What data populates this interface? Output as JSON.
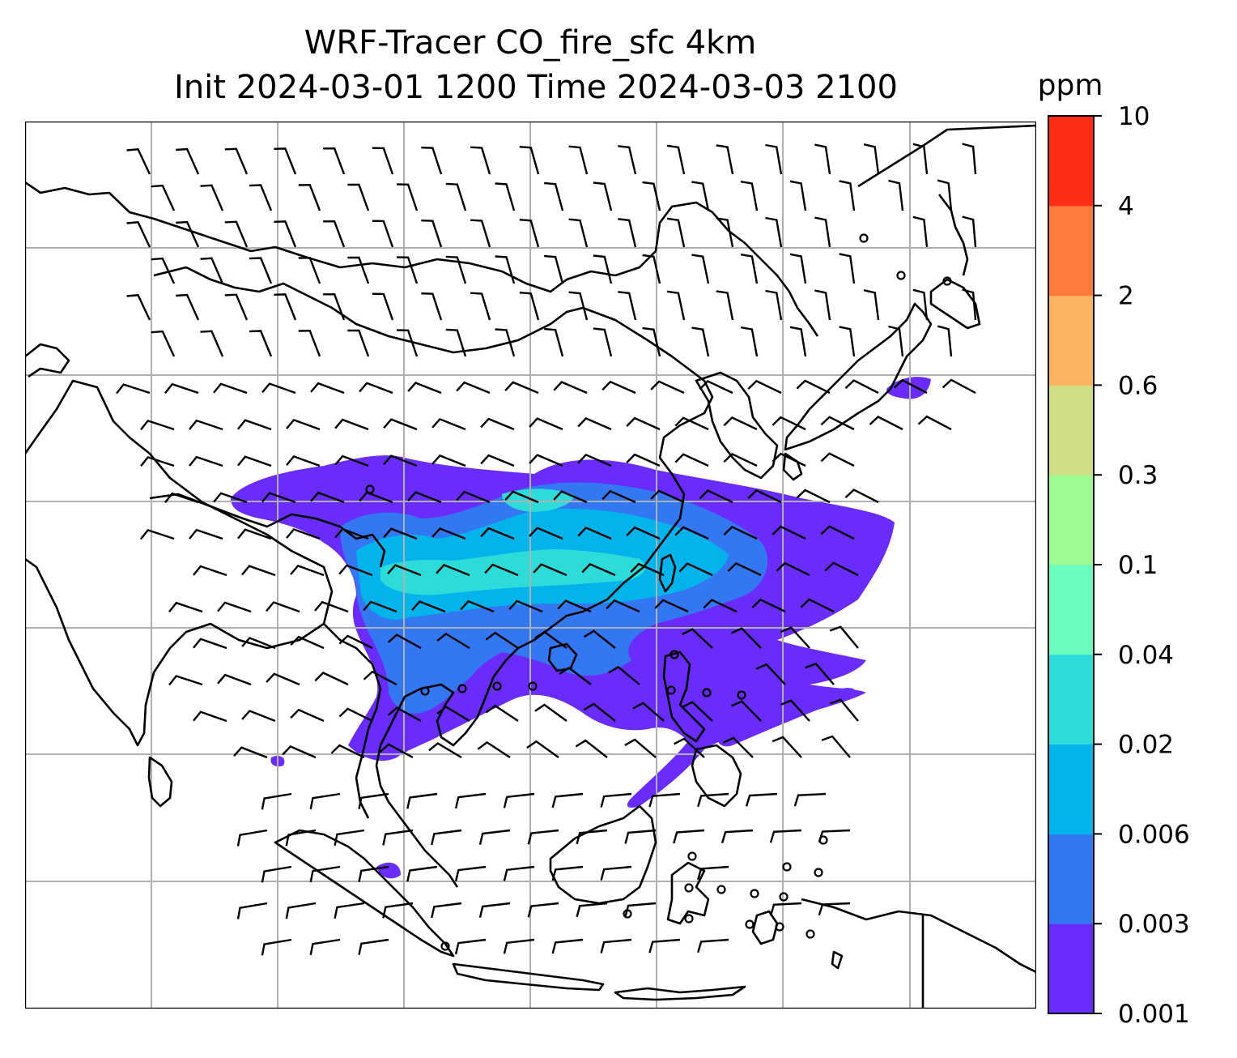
{
  "title_line1": "WRF-Tracer CO_fire_sfc 4km",
  "title_line2": "Init 2024-03-01 1200 Time 2024-03-03 2100",
  "colorbar": {
    "unit": "ppm",
    "levels": [
      "0.001",
      "0.003",
      "0.006",
      "0.02",
      "0.04",
      "0.1",
      "0.3",
      "0.6",
      "2",
      "4",
      "10"
    ],
    "colors": [
      "#6a2cfb",
      "#3477f3",
      "#03b4ec",
      "#2ddcd8",
      "#6bfcc0",
      "#9efa92",
      "#d1de84",
      "#fdb462",
      "#ff7a3c",
      "#ff2d18"
    ]
  },
  "map": {
    "plume_colors": [
      "#6a2cfb",
      "#3477f3",
      "#03b4ec",
      "#2ddcd8"
    ],
    "wind_barbs": "present",
    "gridlines": true
  }
}
